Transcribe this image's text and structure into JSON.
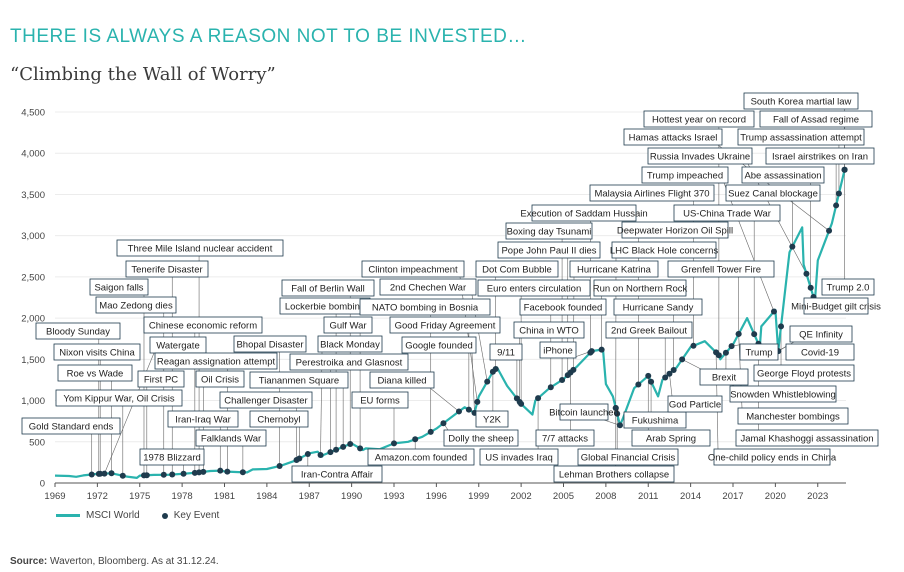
{
  "headline": "THERE IS ALWAYS A REASON NOT TO BE INVESTED…",
  "subtitle": "“Climbing the Wall of Worry”",
  "source": {
    "label": "Source:",
    "text": "Waverton, Bloomberg. As at 31.12.24."
  },
  "colors": {
    "line": "#2ab3ae",
    "marker": "#1f3b4d",
    "box_border": "#1f3b4d",
    "headline": "#2ab3ae"
  },
  "chart_data": {
    "type": "line",
    "title": "Climbing the Wall of Worry",
    "xlabel": "",
    "ylabel": "",
    "xlim": [
      1969,
      2025
    ],
    "ylim": [
      0,
      4500
    ],
    "y_ticks": [
      0,
      500,
      1000,
      1500,
      2000,
      2500,
      3000,
      3500,
      4000,
      4500
    ],
    "y_tick_labels": [
      "0",
      "500",
      "1,000",
      "1,500",
      "2,000",
      "2,500",
      "3,000",
      "3,500",
      "4,000",
      "4,500"
    ],
    "x_ticks": [
      1969,
      1972,
      1975,
      1978,
      1981,
      1984,
      1987,
      1990,
      1993,
      1996,
      1999,
      2002,
      2005,
      2008,
      2011,
      2014,
      2017,
      2020,
      2023
    ],
    "legend": [
      {
        "label": "MSCI World",
        "kind": "line"
      },
      {
        "label": "Key Event",
        "kind": "marker"
      }
    ],
    "series": [
      {
        "name": "MSCI World",
        "x": [
          1969,
          1970,
          1970.5,
          1971,
          1972,
          1973,
          1973.5,
          1974,
          1974.8,
          1975,
          1976,
          1977,
          1978,
          1979,
          1980,
          1980.8,
          1981,
          1982,
          1982.6,
          1983,
          1984,
          1985,
          1986,
          1987,
          1987.6,
          1987.9,
          1988,
          1989,
          1990,
          1990.8,
          1991,
          1992,
          1993,
          1994,
          1995,
          1996,
          1997,
          1998,
          1998.7,
          1999,
          2000,
          2000.3,
          2001,
          2002,
          2002.8,
          2003,
          2004,
          2005,
          2006,
          2007,
          2007.8,
          2008,
          2008.5,
          2009,
          2009.2,
          2010,
          2011,
          2011.7,
          2012,
          2013,
          2014,
          2015,
          2016,
          2016.1,
          2017,
          2018,
          2018.9,
          2019,
          2020,
          2020.2,
          2021,
          2021.9,
          2022,
          2022.8,
          2023,
          2024,
          2024.9
        ],
        "values": [
          90,
          85,
          75,
          92,
          110,
          118,
          100,
          80,
          62,
          90,
          98,
          100,
          110,
          125,
          145,
          150,
          140,
          132,
          128,
          165,
          170,
          210,
          270,
          360,
          380,
          320,
          340,
          410,
          480,
          400,
          420,
          410,
          480,
          500,
          560,
          660,
          790,
          920,
          850,
          1050,
          1350,
          1400,
          1180,
          960,
          830,
          1000,
          1150,
          1260,
          1420,
          1600,
          1620,
          1200,
          1050,
          700,
          780,
          1150,
          1300,
          1050,
          1250,
          1400,
          1650,
          1720,
          1550,
          1500,
          1680,
          2000,
          1650,
          1900,
          2100,
          1600,
          2800,
          3100,
          2650,
          2200,
          2700,
          3150,
          3800
        ]
      }
    ],
    "events": [
      {
        "label": "Gold Standard ends",
        "year": 1971.6
      },
      {
        "label": "Bloody Sunday",
        "year": 1972.1
      },
      {
        "label": "Saigon falls",
        "year": 1975.3
      },
      {
        "label": "Mao Zedong dies",
        "year": 1976.7
      },
      {
        "label": "Three Mile Island nuclear accident",
        "year": 1979.2
      },
      {
        "label": "Tenerife Disaster",
        "year": 1977.3
      },
      {
        "label": "Chinese economic reform",
        "year": 1978.9
      },
      {
        "label": "Nixon visits China",
        "year": 1972.2
      },
      {
        "label": "Watergate",
        "year": 1972.5
      },
      {
        "label": "Roe vs Wade",
        "year": 1973
      },
      {
        "label": "Reagan assignation attempt",
        "year": 1981.2
      },
      {
        "label": "Yom Kippur War, Oil Crisis",
        "year": 1973.8
      },
      {
        "label": "First PC",
        "year": 1975.5
      },
      {
        "label": "Oil Crisis",
        "year": 1979.5
      },
      {
        "label": "Iran-Iraq War",
        "year": 1980.7
      },
      {
        "label": "Challenger Disaster",
        "year": 1986.1
      },
      {
        "label": "Chernobyl",
        "year": 1986.3
      },
      {
        "label": "Falklands War",
        "year": 1982.3
      },
      {
        "label": "1978 Blizzard",
        "year": 1978.1
      },
      {
        "label": "Bhopal Disaster",
        "year": 1984.9
      },
      {
        "label": "Tiananmen Square",
        "year": 1989.4
      },
      {
        "label": "Iran-Contra Affair",
        "year": 1986.9
      },
      {
        "label": "Perestroika and Glasnost",
        "year": 1988.5
      },
      {
        "label": "Black Monday",
        "year": 1987.8
      },
      {
        "label": "Gulf War",
        "year": 1990.6
      },
      {
        "label": "Lockerbie bombing",
        "year": 1988.9
      },
      {
        "label": "Fall of Berlin Wall",
        "year": 1989.9
      },
      {
        "label": "Clinton impeachment",
        "year": 1998.9
      },
      {
        "label": "2nd Chechen War",
        "year": 1999.6
      },
      {
        "label": "NATO bombing in Bosnia",
        "year": 1995.6
      },
      {
        "label": "Good Friday Agreement",
        "year": 1998.3
      },
      {
        "label": "Google founded",
        "year": 1998.7
      },
      {
        "label": "Diana killed",
        "year": 1997.6
      },
      {
        "label": "EU forms",
        "year": 1993
      },
      {
        "label": "Amazon.com founded",
        "year": 1994.5
      },
      {
        "label": "Dolly the sheep",
        "year": 1996.5
      },
      {
        "label": "Y2K",
        "year": 2000
      },
      {
        "label": "9/11",
        "year": 2001.7
      },
      {
        "label": "Dot Com Bubble",
        "year": 2000.2
      },
      {
        "label": "Euro enters circulation",
        "year": 2002
      },
      {
        "label": "Pope John Paul II dies",
        "year": 2005.3
      },
      {
        "label": "Boxing day Tsunami",
        "year": 2004.9
      },
      {
        "label": "Execution of Saddam Hussain",
        "year": 2006.9
      },
      {
        "label": "Facebook founded",
        "year": 2004.1
      },
      {
        "label": "China in WTO",
        "year": 2001.9
      },
      {
        "label": "iPhone",
        "year": 2007
      },
      {
        "label": "US invades Iraq",
        "year": 2003.2
      },
      {
        "label": "7/7 attacks",
        "year": 2005.5
      },
      {
        "label": "Bitcoin launched",
        "year": 2009
      },
      {
        "label": "Hurricane Katrina",
        "year": 2005.7
      },
      {
        "label": "Run on Northern Rock",
        "year": 2007.7
      },
      {
        "label": "Hurricane Sandy",
        "year": 2012.8
      },
      {
        "label": "2nd Greek Bailout",
        "year": 2012.2
      },
      {
        "label": "LHC Black Hole concerns",
        "year": 2008.7
      },
      {
        "label": "Global Financial Crisis",
        "year": 2008.8
      },
      {
        "label": "Lehman Brothers collapse",
        "year": 2008.7
      },
      {
        "label": "Fukushima",
        "year": 2011.2
      },
      {
        "label": "Arab Spring",
        "year": 2011
      },
      {
        "label": "God Particle",
        "year": 2012.5
      },
      {
        "label": "Malaysia Airlines Flight 370",
        "year": 2014.2
      },
      {
        "label": "Deepwater Horizon Oil Spill",
        "year": 2010.3
      },
      {
        "label": "Grenfell Tower Fire",
        "year": 2017.4
      },
      {
        "label": "US-China Trade War",
        "year": 2018.5
      },
      {
        "label": "Hottest year on record",
        "year": 2016
      },
      {
        "label": "Hamas attacks Israel",
        "year": 2023.8
      },
      {
        "label": "Russia Invades Ukraine",
        "year": 2022.2
      },
      {
        "label": "Trump impeached",
        "year": 2019.9
      },
      {
        "label": "Suez Canal blockage",
        "year": 2021.2
      },
      {
        "label": "Abe assassination",
        "year": 2022.5
      },
      {
        "label": "Trump assassination attempt",
        "year": 2024.5
      },
      {
        "label": "South Korea martial law",
        "year": 2024.9
      },
      {
        "label": "Fall of Assad regime",
        "year": 2024.9
      },
      {
        "label": "Israel airstrikes on Iran",
        "year": 2024.3
      },
      {
        "label": "Trump 2.0",
        "year": 2024.9
      },
      {
        "label": "Mini-Budget gilt crisis",
        "year": 2022.7
      },
      {
        "label": "QE Infinity",
        "year": 2020.2
      },
      {
        "label": "Covid-19",
        "year": 2020.2
      },
      {
        "label": "Trump",
        "year": 2016.9
      },
      {
        "label": "Brexit",
        "year": 2016.5
      },
      {
        "label": "George Floyd protests",
        "year": 2020.4
      },
      {
        "label": "Snowden Whistleblowing",
        "year": 2013.4
      },
      {
        "label": "Manchester bombings",
        "year": 2017.4
      },
      {
        "label": "Jamal Khashoggi assassination",
        "year": 2018.8
      },
      {
        "label": "One-child policy ends in China",
        "year": 2015.8
      }
    ]
  }
}
